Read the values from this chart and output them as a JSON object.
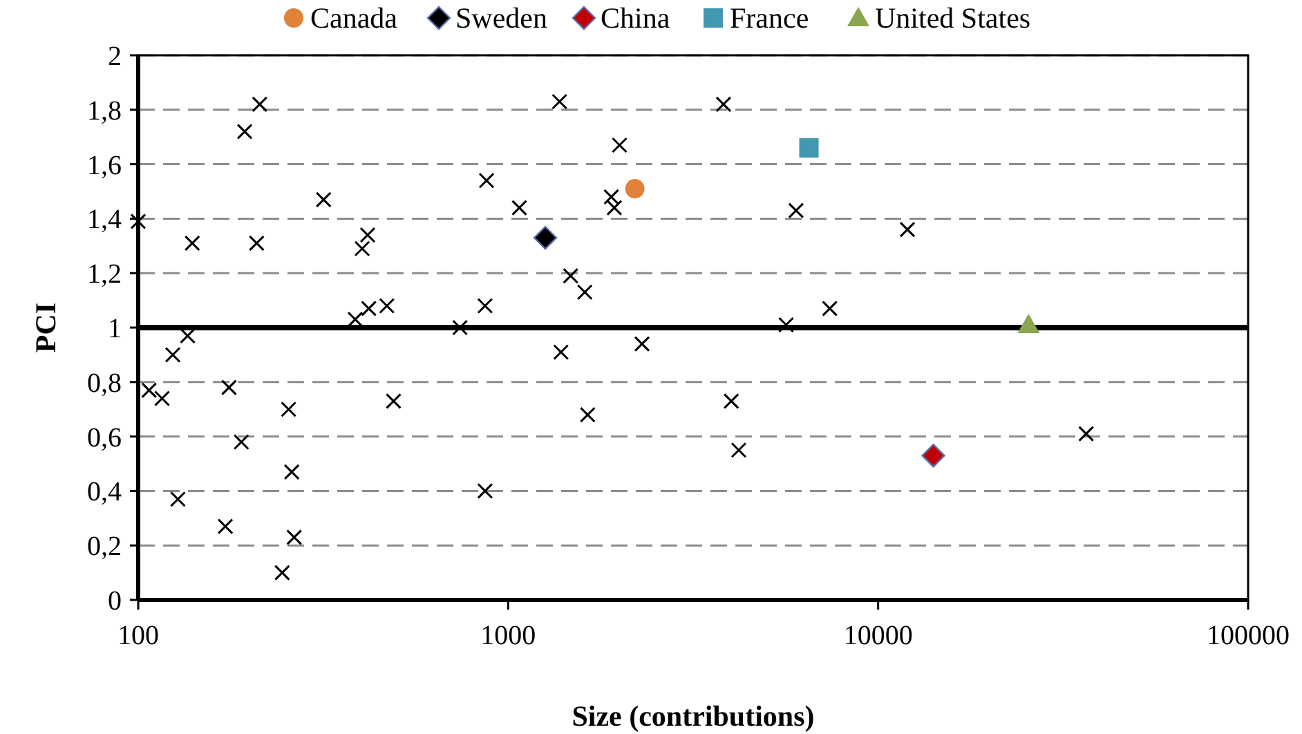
{
  "chart_data": {
    "type": "scatter",
    "xlabel": "Size (contributions)",
    "ylabel": "PCI",
    "log": "x",
    "xlim": [
      100,
      100000
    ],
    "xticks": [
      100,
      1000,
      10000,
      100000
    ],
    "ylim": [
      0,
      2
    ],
    "yticks": [
      0,
      {
        "value": 0.2,
        "label": "0,2"
      },
      {
        "value": 0.4,
        "label": "0,4"
      },
      {
        "value": 0.6,
        "label": "0,6"
      },
      {
        "value": 0.8,
        "label": "0,8"
      },
      1,
      {
        "value": 1.2,
        "label": "1,2"
      },
      {
        "value": 1.4,
        "label": "1,4"
      },
      {
        "value": 1.6,
        "label": "1,6"
      },
      {
        "value": 1.8,
        "label": "1,8"
      },
      2
    ],
    "grid": "y",
    "legend": "top",
    "ref_lines": [
      {
        "axis": "y",
        "value": 1,
        "color": "#000000"
      }
    ],
    "series": [
      {
        "color": "#000000",
        "marker": "cross",
        "x": [
          100,
          107,
          116,
          124,
          128,
          136,
          140,
          176,
          172,
          190,
          194,
          213,
          209,
          245,
          255,
          260,
          264,
          317,
          386,
          403,
          417,
          420,
          470,
          490,
          741,
          866,
          866,
          874,
          1072,
          1377,
          1389,
          1475,
          1611,
          1640,
          1900,
          1936,
          2000,
          2300,
          3820,
          4010,
          4200,
          5640,
          6000,
          7400,
          12000,
          36500
        ],
        "values": [
          1.39,
          0.77,
          0.74,
          0.9,
          0.37,
          0.97,
          1.31,
          0.78,
          0.27,
          0.58,
          1.72,
          1.82,
          1.31,
          0.1,
          0.7,
          0.47,
          0.23,
          1.47,
          1.03,
          1.29,
          1.34,
          1.07,
          1.08,
          0.73,
          1.0,
          0.4,
          1.08,
          1.54,
          1.44,
          1.83,
          0.91,
          1.19,
          1.13,
          0.68,
          1.48,
          1.44,
          1.67,
          0.94,
          1.82,
          0.73,
          0.55,
          1.01,
          1.43,
          1.07,
          1.36,
          0.61
        ]
      },
      {
        "name": "Canada",
        "color": "#e0823a",
        "marker": "circle",
        "x": [
          2200
        ],
        "values": [
          1.51
        ]
      },
      {
        "name": "Sweden",
        "color": "#000000",
        "marker": "diamond",
        "x": [
          1260
        ],
        "values": [
          1.33
        ]
      },
      {
        "name": "China",
        "color": "#c00000",
        "marker": "diamond",
        "x": [
          14100
        ],
        "values": [
          0.53
        ]
      },
      {
        "name": "France",
        "color": "#4198b0",
        "marker": "square",
        "x": [
          6500
        ],
        "values": [
          1.66
        ]
      },
      {
        "name": "United States",
        "color": "#8aa64f",
        "marker": "triangle",
        "x": [
          25500
        ],
        "values": [
          1.01
        ]
      }
    ]
  }
}
